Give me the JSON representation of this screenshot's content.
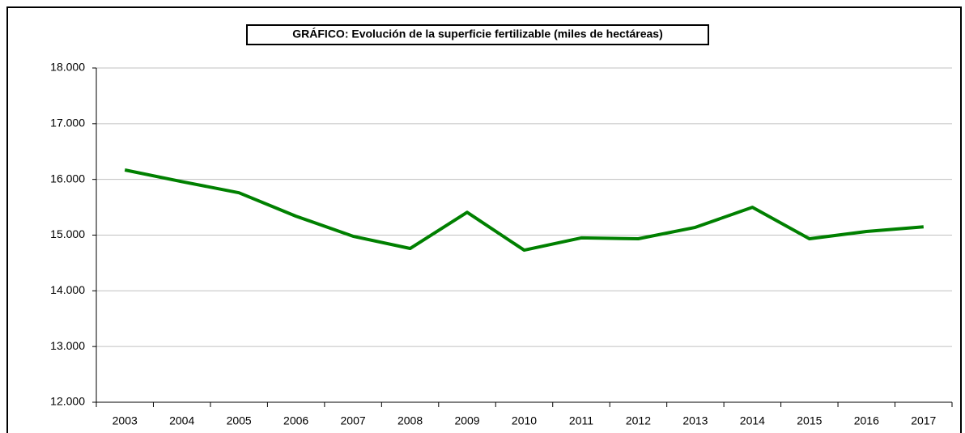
{
  "chart_data": {
    "type": "line",
    "title": "GRÁFICO: Evolución de la superficie fertilizable (miles de hectáreas)",
    "categories": [
      "2003",
      "2004",
      "2005",
      "2006",
      "2007",
      "2008",
      "2009",
      "2010",
      "2011",
      "2012",
      "2013",
      "2014",
      "2015",
      "2016",
      "2017"
    ],
    "series": [
      {
        "name": "Superficie fertilizable",
        "color": "#008000",
        "values": [
          16170,
          15960,
          15760,
          15340,
          14980,
          14760,
          15410,
          14730,
          14950,
          14935,
          15140,
          15500,
          14935,
          15065,
          15150
        ]
      }
    ],
    "ylim": [
      12000,
      18000
    ],
    "yticks": [
      {
        "value": 12000,
        "label": "12.000"
      },
      {
        "value": 13000,
        "label": "13.000"
      },
      {
        "value": 14000,
        "label": "14.000"
      },
      {
        "value": 15000,
        "label": "15.000"
      },
      {
        "value": 16000,
        "label": "16.000"
      },
      {
        "value": 17000,
        "label": "17.000"
      },
      {
        "value": 18000,
        "label": "18.000"
      }
    ],
    "grid": true
  }
}
